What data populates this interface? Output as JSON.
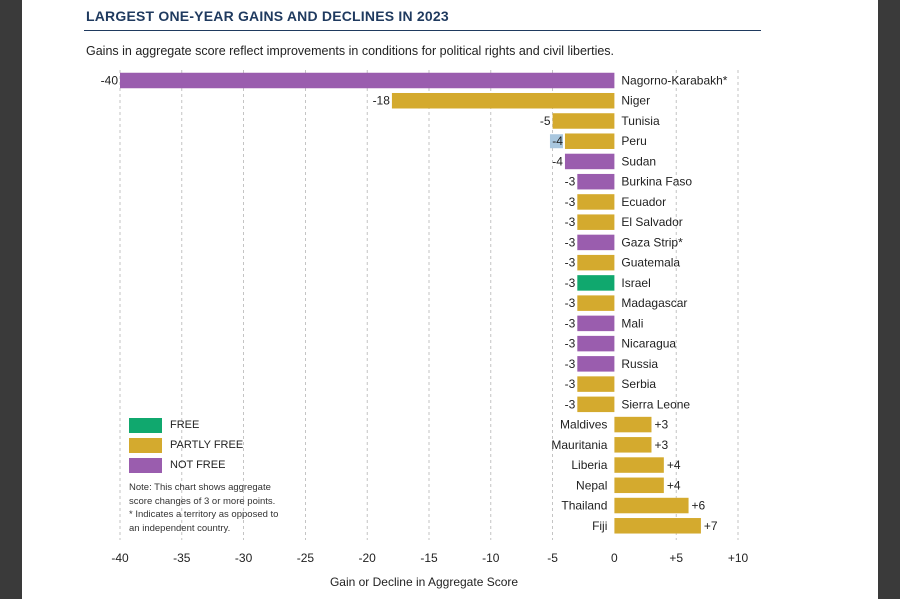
{
  "title": "LARGEST ONE-YEAR GAINS AND DECLINES IN 2023",
  "subtitle": "Gains in aggregate score reflect improvements in conditions for political rights and civil liberties.",
  "colors": {
    "free": "#10a86e",
    "partly_free": "#d4aa2e",
    "not_free": "#9a5dae",
    "highlight": "#a9c7df",
    "title": "#1f3a5f"
  },
  "legend": [
    {
      "label": "FREE",
      "status": "free"
    },
    {
      "label": "PARTLY FREE",
      "status": "partly_free"
    },
    {
      "label": "NOT FREE",
      "status": "not_free"
    }
  ],
  "note": {
    "line1": "Note: This chart shows aggregate",
    "line2": "score changes of 3 or more points.",
    "line3": "* Indicates a territory as opposed to",
    "line4": "an independent country."
  },
  "chart_data": {
    "type": "bar",
    "orientation": "horizontal",
    "xlabel": "Gain or Decline in Aggregate Score",
    "xlim": [
      -40,
      10
    ],
    "xticks": [
      -40,
      -35,
      -30,
      -25,
      -20,
      -15,
      -10,
      -5,
      0,
      5,
      10
    ],
    "xtick_labels": [
      "-40",
      "-35",
      "-30",
      "-25",
      "-20",
      "-15",
      "-10",
      "-5",
      "0",
      "+5",
      "+10"
    ],
    "grid": "vertical dashed",
    "legend_position": "bottom-left",
    "categories": [
      "Nagorno-Karabakh*",
      "Niger",
      "Tunisia",
      "Peru",
      "Sudan",
      "Burkina Faso",
      "Ecuador",
      "El Salvador",
      "Gaza Strip*",
      "Guatemala",
      "Israel",
      "Madagascar",
      "Mali",
      "Nicaragua",
      "Russia",
      "Serbia",
      "Sierra Leone",
      "Maldives",
      "Mauritania",
      "Liberia",
      "Nepal",
      "Thailand",
      "Fiji"
    ],
    "values": [
      -40,
      -18,
      -5,
      -4,
      -4,
      -3,
      -3,
      -3,
      -3,
      -3,
      -3,
      -3,
      -3,
      -3,
      -3,
      -3,
      -3,
      3,
      3,
      4,
      4,
      6,
      7
    ],
    "value_labels": [
      "-40",
      "-18",
      "-5",
      "-4",
      "-4",
      "-3",
      "-3",
      "-3",
      "-3",
      "-3",
      "-3",
      "-3",
      "-3",
      "-3",
      "-3",
      "-3",
      "-3",
      "+3",
      "+3",
      "+4",
      "+4",
      "+6",
      "+7"
    ],
    "status": [
      "not_free",
      "partly_free",
      "partly_free",
      "partly_free",
      "not_free",
      "not_free",
      "partly_free",
      "partly_free",
      "not_free",
      "partly_free",
      "free",
      "partly_free",
      "not_free",
      "not_free",
      "not_free",
      "partly_free",
      "partly_free",
      "partly_free",
      "partly_free",
      "partly_free",
      "partly_free",
      "partly_free",
      "partly_free"
    ],
    "highlighted_label_index": 3
  }
}
